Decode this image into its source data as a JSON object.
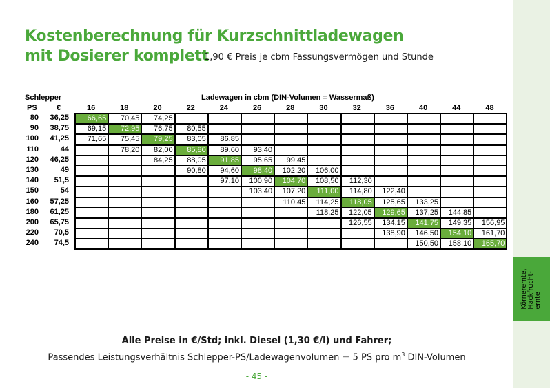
{
  "title_line1": "Kostenberechnung für Kurzschnittladewagen",
  "title_line2": "mit Dosierer komplett",
  "subtitle": "1,90 € Preis je cbm Fassungsvermögen und Stunde",
  "side_tab": "Körnerernte, Hackfrucht-ernte",
  "colors": {
    "accent": "#4aa83a",
    "highlight": "#6aad3c",
    "sidebar": "#eaf2e4"
  },
  "table": {
    "schlepper_label": "Schlepper",
    "ladewagen_label": "Ladewagen in cbm (DIN-Volumen = Wassermaß)",
    "ps_label": "PS",
    "euro_label": "€",
    "columns": [
      "16",
      "18",
      "20",
      "22",
      "24",
      "26",
      "28",
      "30",
      "32",
      "36",
      "40",
      "44",
      "48"
    ],
    "rows": [
      {
        "ps": "80",
        "euro": "36,25",
        "cells": [
          "66,65",
          "70,45",
          "74,25",
          "",
          "",
          "",
          "",
          "",
          "",
          "",
          "",
          "",
          ""
        ],
        "hl": 0
      },
      {
        "ps": "90",
        "euro": "38,75",
        "cells": [
          "69,15",
          "72,95",
          "76,75",
          "80,55",
          "",
          "",
          "",
          "",
          "",
          "",
          "",
          "",
          ""
        ],
        "hl": 1
      },
      {
        "ps": "100",
        "euro": "41,25",
        "cells": [
          "71,65",
          "75,45",
          "79,25",
          "83,05",
          "86,85",
          "",
          "",
          "",
          "",
          "",
          "",
          "",
          ""
        ],
        "hl": 2
      },
      {
        "ps": "110",
        "euro": "44",
        "cells": [
          "",
          "78,20",
          "82,00",
          "85,80",
          "89,60",
          "93,40",
          "",
          "",
          "",
          "",
          "",
          "",
          ""
        ],
        "hl": 3
      },
      {
        "ps": "120",
        "euro": "46,25",
        "cells": [
          "",
          "",
          "84,25",
          "88,05",
          "91,85",
          "95,65",
          "99,45",
          "",
          "",
          "",
          "",
          "",
          ""
        ],
        "hl": 4
      },
      {
        "ps": "130",
        "euro": "49",
        "cells": [
          "",
          "",
          "",
          "90,80",
          "94,60",
          "98,40",
          "102,20",
          "106,00",
          "",
          "",
          "",
          "",
          ""
        ],
        "hl": 5
      },
      {
        "ps": "140",
        "euro": "51,5",
        "cells": [
          "",
          "",
          "",
          "",
          "97,10",
          "100,90",
          "104,70",
          "108,50",
          "112,30",
          "",
          "",
          "",
          ""
        ],
        "hl": 6
      },
      {
        "ps": "150",
        "euro": "54",
        "cells": [
          "",
          "",
          "",
          "",
          "",
          "103,40",
          "107,20",
          "111,00",
          "114,80",
          "122,40",
          "",
          "",
          ""
        ],
        "hl": 7
      },
      {
        "ps": "160",
        "euro": "57,25",
        "cells": [
          "",
          "",
          "",
          "",
          "",
          "",
          "110,45",
          "114,25",
          "118,05",
          "125,65",
          "133,25",
          "",
          ""
        ],
        "hl": 8
      },
      {
        "ps": "180",
        "euro": "61,25",
        "cells": [
          "",
          "",
          "",
          "",
          "",
          "",
          "",
          "118,25",
          "122,05",
          "129,65",
          "137,25",
          "144,85",
          ""
        ],
        "hl": 9
      },
      {
        "ps": "200",
        "euro": "65,75",
        "cells": [
          "",
          "",
          "",
          "",
          "",
          "",
          "",
          "",
          "126,55",
          "134,15",
          "141,75",
          "149,35",
          "156,95"
        ],
        "hl": 10
      },
      {
        "ps": "220",
        "euro": "70,5",
        "cells": [
          "",
          "",
          "",
          "",
          "",
          "",
          "",
          "",
          "",
          "138,90",
          "146,50",
          "154,10",
          "161,70"
        ],
        "hl": 11
      },
      {
        "ps": "240",
        "euro": "74,5",
        "cells": [
          "",
          "",
          "",
          "",
          "",
          "",
          "",
          "",
          "",
          "",
          "150,50",
          "158,10",
          "165,70"
        ],
        "hl": 12
      }
    ]
  },
  "footer_bold": "Alle Preise in €/Std; inkl. Diesel (1,30 €/l) und Fahrer;",
  "footer_text": "Passendes Leistungsverhältnis Schlepper-PS/Ladewagenvolumen = 5 PS pro m³ DIN-Volumen",
  "page_number": "- 45 -"
}
